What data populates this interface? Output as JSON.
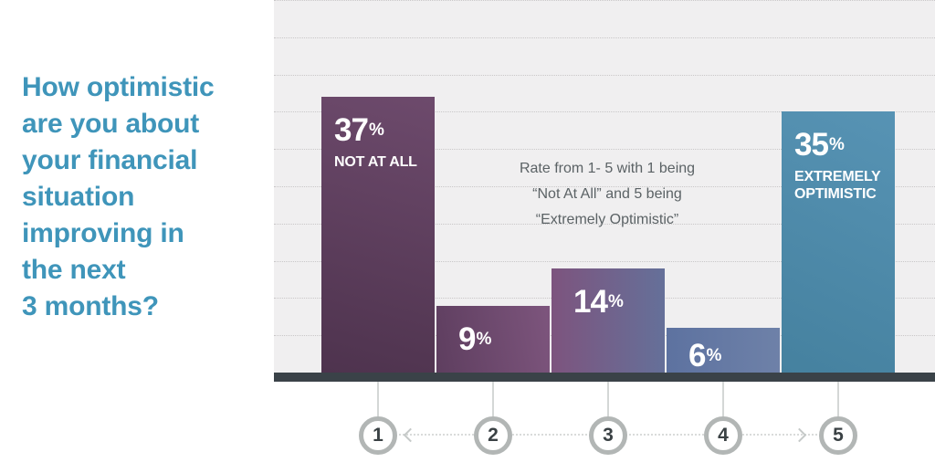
{
  "question": {
    "text": "How optimistic are you about your financial situation improving in the next 3 months?",
    "lines": [
      "How optimistic",
      "are you about",
      "your financial",
      "situation",
      "improving in",
      "the next",
      "3 months?"
    ],
    "color": "#3f95ba"
  },
  "note": {
    "lines": [
      "Rate from 1- 5 with 1 being",
      "“Not At All” and 5 being",
      "“Extremely Optimistic”"
    ]
  },
  "chart_data": {
    "type": "bar",
    "title": "How optimistic are you about your financial situation improving in the next 3 months?",
    "unit": "%",
    "categories": [
      "1",
      "2",
      "3",
      "4",
      "5"
    ],
    "values": [
      37,
      9,
      14,
      6,
      35
    ],
    "bars": [
      {
        "category": "1",
        "value": 37,
        "label": "37",
        "caption": "NOT AT ALL",
        "color_start": "#4e334e",
        "color_end": "#6d4a6c",
        "gradient_angle": "15deg"
      },
      {
        "category": "2",
        "value": 9,
        "label": "9",
        "caption": "",
        "color_start": "#5e3e5f",
        "color_end": "#7d557d",
        "gradient_angle": "80deg"
      },
      {
        "category": "3",
        "value": 14,
        "label": "14",
        "caption": "",
        "color_start": "#7d547e",
        "color_end": "#657099",
        "gradient_angle": "90deg"
      },
      {
        "category": "4",
        "value": 6,
        "label": "6",
        "caption": "",
        "color_start": "#5d72a0",
        "color_end": "#6e81a8",
        "gradient_angle": "90deg"
      },
      {
        "category": "5",
        "value": 35,
        "label": "35",
        "caption": "EXTREMELY OPTIMISTIC",
        "color_start": "#45819f",
        "color_end": "#5793b4",
        "gradient_angle": "25deg"
      }
    ],
    "ylim": [
      0,
      50
    ],
    "gridline_step_pct": 5,
    "grid": "dotted horizontal lines",
    "legend": "none",
    "plot_background": "#f0eff0",
    "axis_line_color": "#3a4248",
    "annotation": "Rate from 1- 5 with 1 being “Not At All” and 5 being “Extremely Optimistic”",
    "x_scale_style": "numbered circles 1-5 joined by dotted double-headed arrow"
  }
}
